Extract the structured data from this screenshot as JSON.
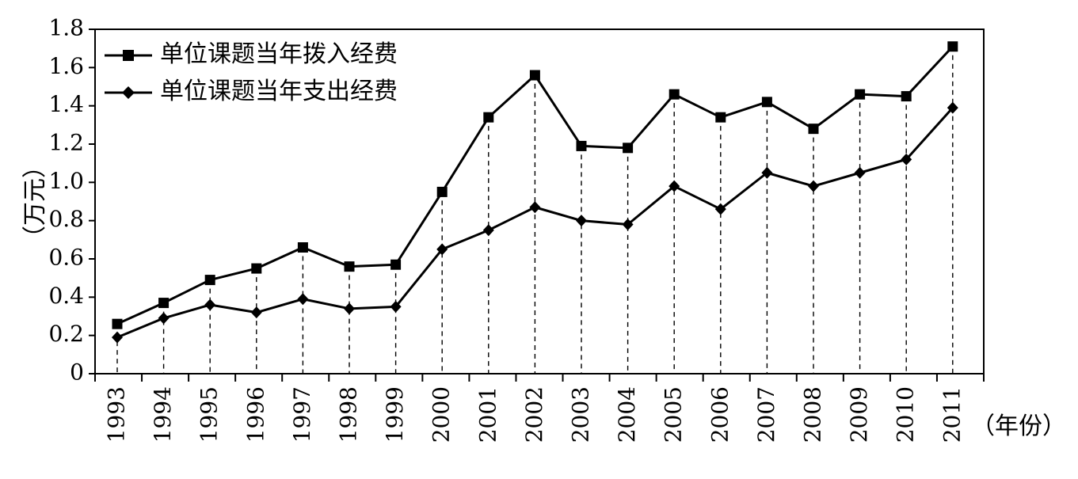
{
  "chart_data": {
    "type": "line",
    "title": "",
    "xlabel": "（年份）",
    "ylabel": "（万元）",
    "ylim": [
      0,
      1.8
    ],
    "yticks": [
      "0",
      "0.2",
      "0.4",
      "0.6",
      "0.8",
      "1.0",
      "1.2",
      "1.4",
      "1.6",
      "1.8"
    ],
    "grid": false,
    "legend_position": "top-left",
    "categories": [
      "1993",
      "1994",
      "1995",
      "1996",
      "1997",
      "1998",
      "1999",
      "2000",
      "2001",
      "2002",
      "2003",
      "2004",
      "2005",
      "2006",
      "2007",
      "2008",
      "2009",
      "2010",
      "2011"
    ],
    "series": [
      {
        "name": "单位课题当年拨入经费",
        "marker": "square",
        "values": [
          0.26,
          0.37,
          0.49,
          0.55,
          0.66,
          0.56,
          0.57,
          0.95,
          1.34,
          1.56,
          1.19,
          1.18,
          1.46,
          1.34,
          1.42,
          1.28,
          1.46,
          1.45,
          1.71
        ]
      },
      {
        "name": "单位课题当年支出经费",
        "marker": "diamond",
        "values": [
          0.19,
          0.29,
          0.36,
          0.32,
          0.39,
          0.34,
          0.35,
          0.65,
          0.75,
          0.87,
          0.8,
          0.78,
          0.98,
          0.86,
          1.05,
          0.98,
          1.05,
          1.12,
          1.39
        ]
      }
    ],
    "colors": {
      "line": "#000000",
      "background": "#ffffff"
    }
  }
}
